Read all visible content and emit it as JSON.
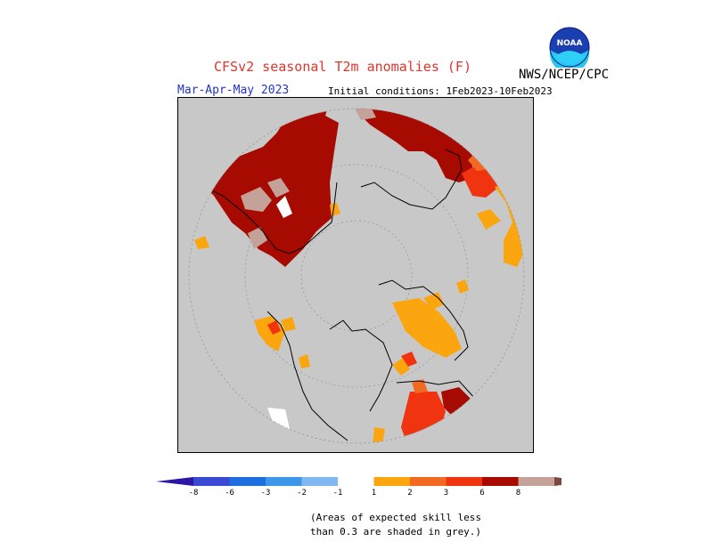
{
  "header": {
    "title": "CFSv2 seasonal T2m anomalies (F)",
    "agency": "NWS/NCEP/CPC",
    "period": "Mar-Apr-May 2023",
    "initial_conditions": "Initial conditions: 1Feb2023-10Feb2023",
    "logo_text": "NOAA"
  },
  "legend": {
    "tick_labels": [
      "-8",
      "-6",
      "-3",
      "-2",
      "-1",
      "1",
      "2",
      "3",
      "6",
      "8"
    ],
    "negative_colors": [
      "#2a17a8",
      "#3a48d4",
      "#1e6ee0",
      "#3e96e8",
      "#7fb8f0"
    ],
    "neutral_color": "#ffffff",
    "positive_colors": [
      "#fba60e",
      "#f26a22",
      "#f03410",
      "#a60a00",
      "#c4a29a",
      "#7a4a40"
    ]
  },
  "map": {
    "projection": "north polar stereographic",
    "low_skill_color": "#c8c8c8"
  },
  "footnote": {
    "line1": "(Areas of expected skill less",
    "line2": "than 0.3 are shaded in grey.)"
  }
}
